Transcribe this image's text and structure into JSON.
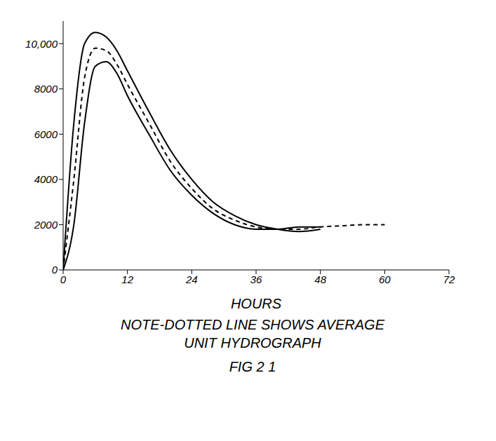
{
  "chart_data": {
    "type": "line",
    "x_label": "HOURS",
    "annotation": "NOTE-DOTTED LINE SHOWS AVERAGE UNIT HYDROGRAPH",
    "caption": "FIG 2 1",
    "x": [
      0,
      2,
      4,
      6,
      8,
      10,
      12,
      16,
      20,
      24,
      28,
      32,
      36,
      40,
      44,
      48,
      52,
      56,
      60
    ],
    "series": [
      {
        "color": "#000000",
        "line_style": "solid",
        "values": [
          0,
          6500,
          10000,
          10500,
          10300,
          9700,
          8800,
          7000,
          5300,
          4000,
          3000,
          2400,
          2000,
          1800,
          1700,
          1800,
          null,
          null,
          null
        ]
      },
      {
        "color": "#000000",
        "line_style": "dashed",
        "values": [
          0,
          4000,
          8500,
          9800,
          9700,
          9100,
          8200,
          6500,
          4800,
          3600,
          2700,
          2200,
          1900,
          1800,
          1800,
          1900,
          1950,
          2000,
          2000
        ]
      },
      {
        "color": "#000000",
        "line_style": "solid",
        "values": [
          0,
          2000,
          6500,
          9000,
          9200,
          8700,
          7700,
          6000,
          4400,
          3300,
          2500,
          2000,
          1800,
          1800,
          1900,
          1900,
          null,
          null,
          null
        ]
      }
    ],
    "xlim": [
      0,
      72
    ],
    "xticks": [
      0,
      12,
      24,
      36,
      48,
      60,
      72
    ],
    "ylim": [
      0,
      11000
    ],
    "yticks": [
      0,
      2000,
      4000,
      6000,
      8000,
      {
        "value": 10000,
        "label": "10,000"
      }
    ],
    "grid": false
  }
}
